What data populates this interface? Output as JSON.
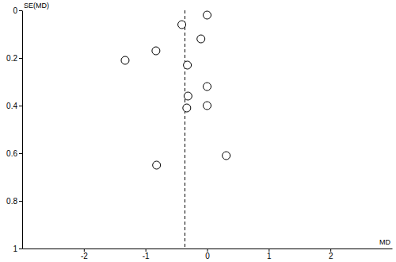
{
  "chart_data": {
    "type": "scatter",
    "x_label": "MD",
    "y_label": "SE(MD)",
    "x": [
      0,
      -0.41,
      -0.1,
      -1.33,
      -0.83,
      -0.32,
      0,
      -0.31,
      0,
      -0.33,
      0.31,
      -0.82
    ],
    "y": [
      0.02,
      0.06,
      0.12,
      0.21,
      0.17,
      0.23,
      0.32,
      0.36,
      0.4,
      0.41,
      0.61,
      0.65
    ],
    "reference_x": -0.36,
    "xlim": [
      -3,
      3
    ],
    "xticks": [
      -2,
      -1,
      0,
      1,
      2
    ],
    "ylim": [
      0,
      1
    ],
    "yticks": [
      0,
      0.2,
      0.4,
      0.6,
      0.8,
      1
    ],
    "color": "#000000",
    "marker": "open-circle",
    "grid": false
  }
}
